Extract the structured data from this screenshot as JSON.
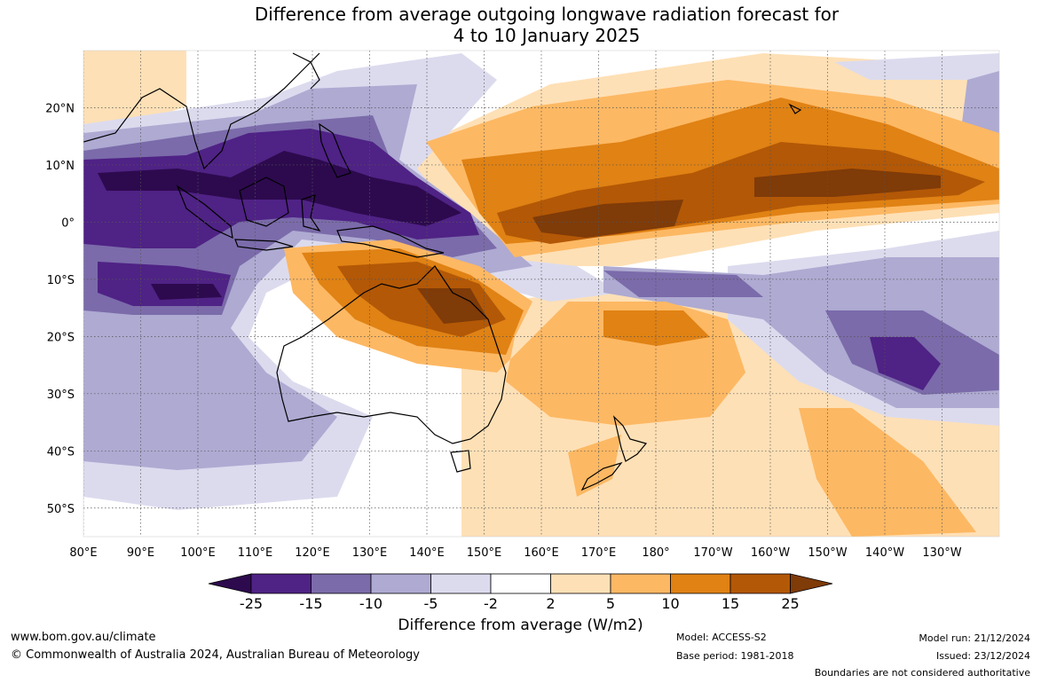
{
  "title": {
    "line1": "Difference from average outgoing longwave radiation forecast for",
    "line2": "4 to 10 January 2025"
  },
  "map": {
    "lon_labels": [
      "80°E",
      "90°E",
      "100°E",
      "110°E",
      "120°E",
      "130°E",
      "140°E",
      "150°E",
      "160°E",
      "170°E",
      "180°",
      "170°W",
      "160°W",
      "150°W",
      "140°W",
      "130°W"
    ],
    "lat_labels": [
      "20°N",
      "10°N",
      "0°",
      "10°S",
      "20°S",
      "30°S",
      "40°S",
      "50°S"
    ],
    "lon_range_degE": [
      80,
      240
    ],
    "lat_range_deg": [
      -55,
      30
    ]
  },
  "colorbar": {
    "tick_labels": [
      "-25",
      "-15",
      "-10",
      "-5",
      "-2",
      "2",
      "5",
      "10",
      "15",
      "25"
    ],
    "colors": [
      "#2d0a4e",
      "#4f2285",
      "#7b6baa",
      "#aeaad2",
      "#dcdbee",
      "#ffffff",
      "#fee0b6",
      "#fdb863",
      "#e08214",
      "#b35806",
      "#7f3b08"
    ],
    "label": "Difference from average (W/m2)"
  },
  "footer": {
    "url": "www.bom.gov.au/climate",
    "copyright": "© Commonwealth of Australia 2024, Australian Bureau of Meteorology",
    "model": "Model: ACCESS-S2",
    "base_period": "Base period: 1981-2018",
    "model_run": "Model run: 21/12/2024",
    "issued": "Issued: 23/12/2024",
    "boundaries": "Boundaries are not considered authoritative"
  }
}
